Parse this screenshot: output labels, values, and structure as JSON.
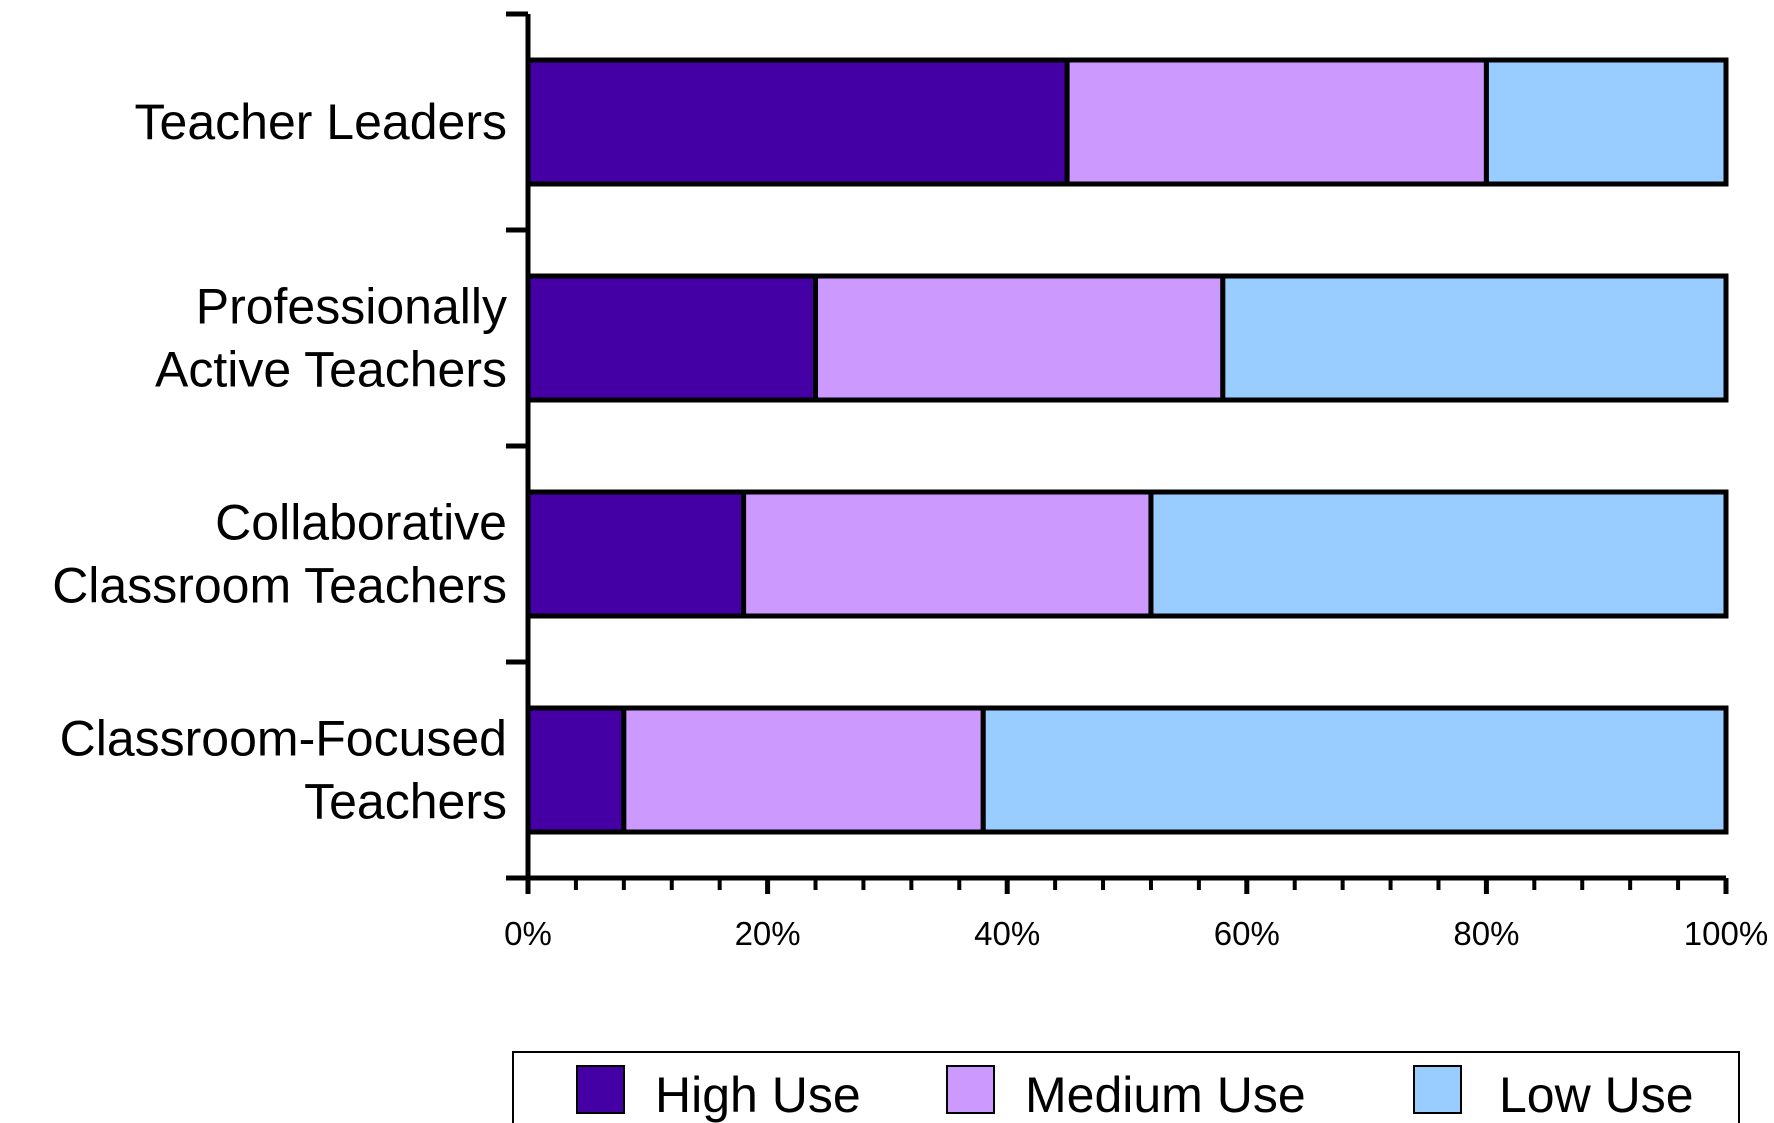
{
  "chart_data": {
    "type": "bar",
    "orientation": "horizontal",
    "stacked": "percent",
    "title": "",
    "xlabel": "",
    "ylabel": "",
    "xlim": [
      0,
      100
    ],
    "x_ticks": [
      "0%",
      "20%",
      "40%",
      "60%",
      "80%",
      "100%"
    ],
    "categories": [
      [
        "Teacher Leaders"
      ],
      [
        "Professionally",
        "Active Teachers"
      ],
      [
        "Collaborative",
        "Classroom Teachers"
      ],
      [
        "Classroom-Focused",
        "Teachers"
      ]
    ],
    "series": [
      {
        "name": "High Use",
        "color": "#4400a4",
        "values": [
          45,
          24,
          18,
          8
        ]
      },
      {
        "name": "Medium Use",
        "color": "#cc99ff",
        "values": [
          35,
          34,
          34,
          30
        ]
      },
      {
        "name": "Low Use",
        "color": "#99ccff",
        "values": [
          20,
          42,
          48,
          62
        ]
      }
    ],
    "grid": false,
    "legend_position": "bottom"
  }
}
